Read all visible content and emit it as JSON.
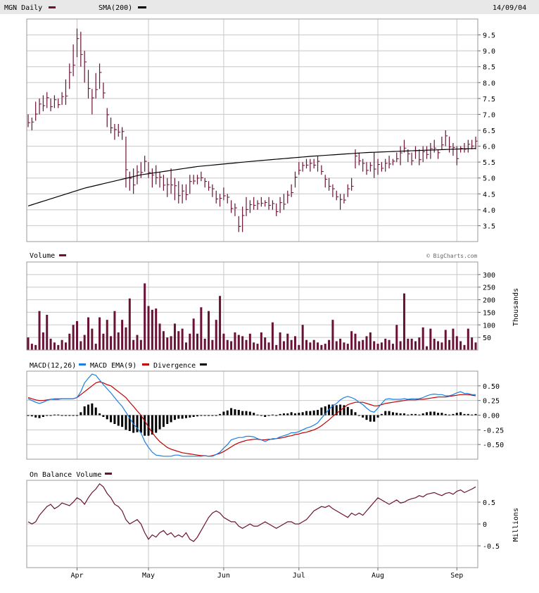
{
  "header": {
    "title": "MGN Daily",
    "sma_label": "SMA(200)",
    "date": "14/09/04"
  },
  "panels": {
    "volume_label": "Volume",
    "volume_units": "Thousands",
    "watermark": "© BigCharts.com",
    "macd_label": "MACD(12,26)",
    "macd_ema_label": "MACD EMA(9)",
    "divergence_label": "Divergence",
    "obv_label": "On Balance Volume",
    "obv_units": "Millions"
  },
  "colors": {
    "price_bar": "#6a1236",
    "volume_bar": "#6a1236",
    "sma": "#000000",
    "macd": "#1a7fe0",
    "macd_ema": "#c00000",
    "divergence": "#000000",
    "obv": "#6a1236",
    "grid": "#c8c8c8"
  },
  "chart_data": [
    {
      "type": "ohlc",
      "name": "price",
      "ylim": [
        3.0,
        10.0
      ],
      "y_ticks": [
        "3.5",
        "4.0",
        "4.5",
        "5.0",
        "5.5",
        "6.0",
        "6.5",
        "7.0",
        "7.5",
        "8.0",
        "8.5",
        "9.0",
        "9.5"
      ],
      "x_ticks": [
        "Apr",
        "May",
        "Jun",
        "Jul",
        "Aug",
        "Sep"
      ],
      "bars": [
        [
          6.6,
          7.0
        ],
        [
          6.5,
          6.9
        ],
        [
          6.8,
          7.4
        ],
        [
          7.0,
          7.5
        ],
        [
          7.1,
          7.6
        ],
        [
          7.2,
          7.7
        ],
        [
          7.1,
          7.5
        ],
        [
          7.2,
          7.6
        ],
        [
          7.2,
          7.5
        ],
        [
          7.3,
          7.7
        ],
        [
          7.3,
          8.1
        ],
        [
          7.8,
          8.6
        ],
        [
          8.2,
          9.2
        ],
        [
          8.8,
          9.7
        ],
        [
          8.5,
          9.6
        ],
        [
          8.0,
          9.0
        ],
        [
          7.5,
          8.4
        ],
        [
          7.0,
          7.8
        ],
        [
          7.5,
          8.3
        ],
        [
          7.8,
          8.6
        ],
        [
          7.5,
          8.0
        ],
        [
          6.6,
          7.2
        ],
        [
          6.4,
          6.9
        ],
        [
          6.2,
          6.7
        ],
        [
          6.3,
          6.7
        ],
        [
          6.2,
          6.6
        ],
        [
          4.7,
          6.3
        ],
        [
          4.6,
          5.2
        ],
        [
          4.5,
          5.3
        ],
        [
          4.8,
          5.4
        ],
        [
          5.0,
          5.5
        ],
        [
          5.2,
          5.7
        ],
        [
          5.0,
          5.5
        ],
        [
          4.7,
          5.3
        ],
        [
          4.8,
          5.4
        ],
        [
          4.7,
          5.2
        ],
        [
          4.6,
          5.1
        ],
        [
          4.4,
          5.0
        ],
        [
          4.5,
          5.3
        ],
        [
          4.3,
          5.0
        ],
        [
          4.2,
          4.9
        ],
        [
          4.2,
          4.8
        ],
        [
          4.3,
          4.8
        ],
        [
          4.5,
          5.1
        ],
        [
          4.8,
          5.1
        ],
        [
          4.8,
          5.1
        ],
        [
          4.9,
          5.2
        ],
        [
          4.7,
          5.0
        ],
        [
          4.6,
          4.9
        ],
        [
          4.4,
          4.8
        ],
        [
          4.2,
          4.6
        ],
        [
          4.1,
          4.5
        ],
        [
          4.3,
          4.7
        ],
        [
          4.2,
          4.5
        ],
        [
          3.9,
          4.3
        ],
        [
          3.8,
          4.2
        ],
        [
          3.3,
          3.8
        ],
        [
          3.3,
          4.1
        ],
        [
          3.8,
          4.4
        ],
        [
          3.9,
          4.3
        ],
        [
          4.0,
          4.4
        ],
        [
          4.0,
          4.3
        ],
        [
          4.1,
          4.4
        ],
        [
          4.1,
          4.3
        ],
        [
          4.0,
          4.4
        ],
        [
          4.0,
          4.3
        ],
        [
          3.8,
          4.2
        ],
        [
          3.9,
          4.4
        ],
        [
          4.0,
          4.5
        ],
        [
          4.2,
          4.6
        ],
        [
          4.4,
          4.8
        ],
        [
          4.7,
          5.2
        ],
        [
          5.1,
          5.5
        ],
        [
          5.2,
          5.5
        ],
        [
          5.3,
          5.6
        ],
        [
          5.2,
          5.6
        ],
        [
          5.3,
          5.6
        ],
        [
          5.2,
          5.7
        ],
        [
          5.1,
          5.4
        ],
        [
          4.7,
          5.1
        ],
        [
          4.6,
          5.0
        ],
        [
          4.4,
          4.8
        ],
        [
          4.3,
          4.6
        ],
        [
          4.0,
          4.5
        ],
        [
          4.2,
          4.5
        ],
        [
          4.4,
          4.8
        ],
        [
          4.6,
          5.0
        ],
        [
          5.3,
          5.9
        ],
        [
          5.4,
          5.8
        ],
        [
          5.2,
          5.6
        ],
        [
          5.1,
          5.5
        ],
        [
          5.2,
          5.5
        ],
        [
          5.0,
          5.8
        ],
        [
          5.1,
          5.6
        ],
        [
          5.2,
          5.5
        ],
        [
          5.2,
          5.6
        ],
        [
          5.3,
          5.7
        ],
        [
          5.4,
          5.6
        ],
        [
          5.5,
          5.8
        ],
        [
          5.4,
          6.0
        ],
        [
          5.8,
          6.2
        ],
        [
          5.5,
          5.9
        ],
        [
          5.4,
          5.8
        ],
        [
          5.6,
          6.0
        ],
        [
          5.4,
          5.9
        ],
        [
          5.5,
          6.0
        ],
        [
          5.6,
          6.0
        ],
        [
          5.6,
          6.1
        ],
        [
          5.8,
          6.2
        ],
        [
          5.6,
          5.9
        ],
        [
          5.9,
          6.3
        ],
        [
          6.0,
          6.5
        ],
        [
          5.8,
          6.3
        ],
        [
          5.7,
          6.1
        ],
        [
          5.4,
          6.0
        ],
        [
          5.8,
          6.0
        ],
        [
          5.8,
          6.1
        ],
        [
          5.8,
          6.2
        ],
        [
          5.9,
          6.2
        ],
        [
          5.9,
          6.3
        ]
      ]
    },
    {
      "type": "line",
      "name": "SMA(200)",
      "x_index": [
        0,
        15,
        30,
        45,
        60,
        75,
        90,
        105,
        119
      ],
      "values": [
        4.12,
        4.68,
        5.1,
        5.36,
        5.53,
        5.68,
        5.8,
        5.87,
        5.93
      ]
    },
    {
      "type": "bar",
      "name": "Volume",
      "units": "Thousands",
      "ylim": [
        0,
        350
      ],
      "y_ticks": [
        "50",
        "100",
        "150",
        "200",
        "250",
        "300"
      ],
      "values": [
        50,
        25,
        20,
        155,
        70,
        140,
        45,
        30,
        20,
        40,
        30,
        65,
        100,
        115,
        35,
        60,
        130,
        85,
        25,
        130,
        65,
        120,
        55,
        155,
        70,
        120,
        90,
        205,
        40,
        60,
        40,
        265,
        175,
        160,
        165,
        105,
        75,
        50,
        55,
        105,
        75,
        85,
        30,
        65,
        125,
        65,
        170,
        45,
        155,
        40,
        120,
        215,
        65,
        40,
        35,
        70,
        60,
        55,
        40,
        65,
        30,
        25,
        70,
        50,
        30,
        110,
        20,
        70,
        35,
        65,
        40,
        55,
        20,
        100,
        40,
        30,
        40,
        30,
        20,
        25,
        40,
        120,
        35,
        45,
        30,
        25,
        75,
        65,
        35,
        40,
        55,
        70,
        35,
        25,
        30,
        45,
        40,
        25,
        100,
        35,
        225,
        45,
        45,
        35,
        50,
        90,
        15,
        85,
        45,
        35,
        30,
        80,
        40,
        85,
        55,
        35,
        20,
        85,
        50,
        30
      ]
    },
    {
      "type": "line",
      "name": "MACD",
      "ylim": [
        -0.75,
        0.75
      ],
      "y_ticks": [
        "0.50",
        "0.25",
        "0.00",
        "-0.25",
        "-0.50"
      ],
      "macd": [
        0.28,
        0.25,
        0.22,
        0.2,
        0.22,
        0.25,
        0.27,
        0.28,
        0.28,
        0.28,
        0.28,
        0.28,
        0.28,
        0.3,
        0.4,
        0.55,
        0.63,
        0.7,
        0.68,
        0.6,
        0.52,
        0.45,
        0.38,
        0.3,
        0.22,
        0.15,
        0.05,
        -0.05,
        -0.15,
        -0.22,
        -0.3,
        -0.45,
        -0.55,
        -0.63,
        -0.68,
        -0.69,
        -0.7,
        -0.7,
        -0.7,
        -0.68,
        -0.68,
        -0.7,
        -0.7,
        -0.7,
        -0.7,
        -0.7,
        -0.7,
        -0.69,
        -0.7,
        -0.7,
        -0.67,
        -0.63,
        -0.56,
        -0.5,
        -0.42,
        -0.4,
        -0.38,
        -0.38,
        -0.36,
        -0.36,
        -0.37,
        -0.4,
        -0.42,
        -0.45,
        -0.42,
        -0.4,
        -0.4,
        -0.37,
        -0.35,
        -0.33,
        -0.3,
        -0.3,
        -0.28,
        -0.25,
        -0.22,
        -0.2,
        -0.17,
        -0.13,
        -0.05,
        0.02,
        0.1,
        0.16,
        0.2,
        0.26,
        0.3,
        0.32,
        0.3,
        0.27,
        0.22,
        0.18,
        0.12,
        0.07,
        0.05,
        0.12,
        0.2,
        0.27,
        0.28,
        0.27,
        0.27,
        0.27,
        0.28,
        0.27,
        0.28,
        0.28,
        0.28,
        0.3,
        0.33,
        0.35,
        0.36,
        0.35,
        0.35,
        0.33,
        0.33,
        0.35,
        0.38,
        0.4,
        0.37,
        0.37,
        0.35,
        0.35
      ],
      "ema": [
        0.3,
        0.28,
        0.26,
        0.25,
        0.25,
        0.26,
        0.27,
        0.27,
        0.27,
        0.28,
        0.28,
        0.28,
        0.28,
        0.3,
        0.35,
        0.4,
        0.45,
        0.5,
        0.55,
        0.57,
        0.55,
        0.52,
        0.5,
        0.45,
        0.4,
        0.35,
        0.3,
        0.22,
        0.15,
        0.07,
        0.0,
        -0.1,
        -0.2,
        -0.3,
        -0.38,
        -0.45,
        -0.5,
        -0.55,
        -0.58,
        -0.6,
        -0.62,
        -0.64,
        -0.65,
        -0.66,
        -0.67,
        -0.68,
        -0.69,
        -0.69,
        -0.7,
        -0.69,
        -0.67,
        -0.65,
        -0.62,
        -0.58,
        -0.54,
        -0.5,
        -0.47,
        -0.45,
        -0.43,
        -0.42,
        -0.41,
        -0.41,
        -0.42,
        -0.42,
        -0.41,
        -0.41,
        -0.4,
        -0.39,
        -0.38,
        -0.36,
        -0.35,
        -0.33,
        -0.32,
        -0.3,
        -0.29,
        -0.27,
        -0.25,
        -0.22,
        -0.18,
        -0.13,
        -0.08,
        -0.02,
        0.03,
        0.08,
        0.13,
        0.18,
        0.2,
        0.22,
        0.22,
        0.22,
        0.2,
        0.18,
        0.16,
        0.16,
        0.18,
        0.2,
        0.21,
        0.22,
        0.23,
        0.24,
        0.25,
        0.26,
        0.26,
        0.26,
        0.27,
        0.27,
        0.28,
        0.29,
        0.3,
        0.31,
        0.31,
        0.31,
        0.32,
        0.33,
        0.34,
        0.35,
        0.35,
        0.35,
        0.34,
        0.33
      ],
      "divergence": [
        0.0,
        -0.02,
        -0.04,
        -0.05,
        -0.03,
        -0.01,
        0.0,
        0.01,
        0.01,
        0.0,
        0.0,
        0.0,
        0.0,
        0.0,
        0.05,
        0.15,
        0.18,
        0.2,
        0.13,
        0.03,
        -0.03,
        -0.07,
        -0.12,
        -0.15,
        -0.18,
        -0.2,
        -0.25,
        -0.27,
        -0.3,
        -0.29,
        -0.3,
        -0.35,
        -0.35,
        -0.33,
        -0.3,
        -0.24,
        -0.2,
        -0.15,
        -0.12,
        -0.08,
        -0.06,
        -0.06,
        -0.05,
        -0.04,
        -0.03,
        -0.02,
        -0.01,
        0.0,
        0.0,
        -0.01,
        0.0,
        0.02,
        0.06,
        0.08,
        0.12,
        0.1,
        0.09,
        0.07,
        0.07,
        0.06,
        0.04,
        0.01,
        0.0,
        -0.03,
        -0.01,
        0.01,
        0.0,
        0.02,
        0.03,
        0.03,
        0.05,
        0.03,
        0.04,
        0.05,
        0.07,
        0.07,
        0.08,
        0.09,
        0.13,
        0.15,
        0.18,
        0.18,
        0.17,
        0.18,
        0.17,
        0.14,
        0.1,
        0.05,
        0.0,
        -0.04,
        -0.08,
        -0.11,
        -0.11,
        -0.04,
        0.02,
        0.07,
        0.07,
        0.05,
        0.04,
        0.03,
        0.03,
        0.01,
        0.02,
        0.02,
        0.01,
        0.03,
        0.05,
        0.06,
        0.06,
        0.04,
        0.04,
        0.02,
        0.01,
        0.02,
        0.04,
        0.05,
        0.02,
        0.02,
        0.01,
        0.02
      ]
    },
    {
      "type": "line",
      "name": "On Balance Volume",
      "units": "Millions",
      "ylim": [
        -1.0,
        1.0
      ],
      "y_ticks": [
        "0.5",
        "0",
        "-0.5"
      ],
      "values": [
        0.05,
        0.0,
        0.05,
        0.2,
        0.3,
        0.4,
        0.45,
        0.35,
        0.4,
        0.48,
        0.45,
        0.42,
        0.5,
        0.6,
        0.55,
        0.45,
        0.6,
        0.72,
        0.8,
        0.92,
        0.85,
        0.7,
        0.6,
        0.45,
        0.4,
        0.3,
        0.1,
        0.0,
        0.05,
        0.1,
        0.0,
        -0.2,
        -0.35,
        -0.25,
        -0.3,
        -0.2,
        -0.15,
        -0.25,
        -0.2,
        -0.3,
        -0.25,
        -0.3,
        -0.2,
        -0.35,
        -0.4,
        -0.3,
        -0.15,
        0.0,
        0.15,
        0.25,
        0.3,
        0.25,
        0.15,
        0.1,
        0.05,
        0.05,
        -0.05,
        -0.1,
        -0.05,
        0.0,
        -0.05,
        -0.05,
        0.0,
        0.05,
        0.0,
        -0.05,
        -0.1,
        -0.05,
        0.0,
        0.05,
        0.05,
        0.0,
        0.0,
        0.05,
        0.1,
        0.2,
        0.3,
        0.35,
        0.4,
        0.38,
        0.42,
        0.35,
        0.3,
        0.25,
        0.2,
        0.15,
        0.25,
        0.2,
        0.25,
        0.2,
        0.3,
        0.4,
        0.5,
        0.6,
        0.55,
        0.5,
        0.45,
        0.5,
        0.55,
        0.48,
        0.5,
        0.55,
        0.58,
        0.6,
        0.65,
        0.62,
        0.68,
        0.7,
        0.72,
        0.68,
        0.65,
        0.7,
        0.72,
        0.68,
        0.75,
        0.78,
        0.72,
        0.76,
        0.8,
        0.85
      ]
    }
  ]
}
